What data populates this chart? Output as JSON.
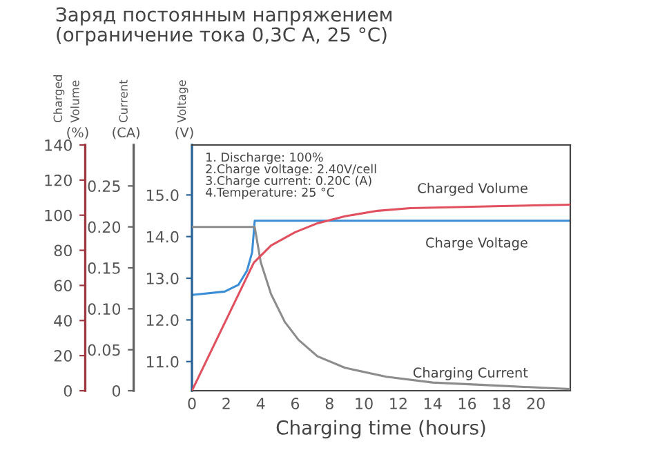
{
  "chart_data": {
    "type": "line",
    "title": "Заряд постоянным напряжением\n(ограничение тока 0,3C A, 25 °C)",
    "xlabel": "Charging time (hours)",
    "ylabel": "Voltage\n(V)",
    "y2label": "Current\n(CA)",
    "y3label": "Charged Volume\n(%)",
    "annotations": [
      "1. Discharge: 100%\n2.Charge voltage: 2.40V/cell\n3.Charge current: 0.20C (A)\n4.Temperature: 25 °C"
    ],
    "xlim": [
      0,
      22
    ],
    "xticks": [
      0,
      2,
      4,
      6,
      8,
      10,
      12,
      14,
      16,
      18,
      20
    ],
    "ylim": [
      10.3,
      16.2
    ],
    "yticks": [
      {
        "value": 11,
        "label": "11.0"
      },
      {
        "value": 12,
        "label": "12.0"
      },
      {
        "value": 13,
        "label": "13.0"
      },
      {
        "value": 14,
        "label": "14.0"
      },
      {
        "value": 15,
        "label": "15.0"
      }
    ],
    "y2lim": [
      0,
      0.3
    ],
    "y2ticks": [
      0,
      {
        "value": 0.05,
        "label": "0.05"
      },
      {
        "value": 0.1,
        "label": "0.10"
      },
      {
        "value": 0.15,
        "label": "0.15"
      },
      {
        "value": 0.2,
        "label": "0.20"
      },
      {
        "value": 0.25,
        "label": "0.25"
      }
    ],
    "y3lim": [
      0,
      140
    ],
    "y3ticks": [
      0,
      20,
      40,
      60,
      80,
      100,
      120,
      140
    ],
    "grid": false,
    "legend": false,
    "marker": "none",
    "line_style": "solid",
    "series": [
      {
        "name": "Charged Volume",
        "color": "#e0505e",
        "axis": "y3",
        "x": [
          0,
          3.6,
          4.6,
          6,
          7.3,
          8.9,
          10.8,
          12.7,
          15.4,
          18,
          22
        ],
        "values": [
          0,
          73,
          82.7,
          90.3,
          95.4,
          99.4,
          102.5,
          104,
          104.6,
          105.2,
          106
        ]
      },
      {
        "name": "Charge Voltage",
        "color": "#3b8ed6",
        "axis": "y",
        "x": [
          0,
          1.9,
          2.7,
          3.2,
          3.5,
          3.65,
          22
        ],
        "values": [
          12.6,
          12.68,
          12.84,
          13.18,
          13.62,
          14.38,
          14.38
        ]
      },
      {
        "name": "Charging Current",
        "color": "#8c8c8c",
        "axis": "y2",
        "x": [
          0,
          3.65,
          4.0,
          4.6,
          5.4,
          6.2,
          7.3,
          8.9,
          11.3,
          14,
          18,
          22
        ],
        "values": [
          0.2,
          0.2,
          0.157,
          0.118,
          0.084,
          0.062,
          0.042,
          0.028,
          0.017,
          0.01,
          0.006,
          0.002
        ]
      }
    ]
  }
}
